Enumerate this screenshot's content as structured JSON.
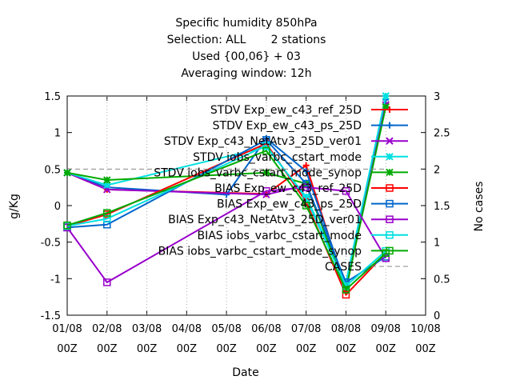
{
  "chart_data": {
    "type": "line",
    "title_lines": [
      "Specific humidity 850hPa",
      "Selection: ALL       2 stations",
      "Used {00,06} + 03",
      "Averaging window: 12h"
    ],
    "xlabel": "Date",
    "ylabel": "g/Kg",
    "y2label": "No cases",
    "x_ticks": [
      {
        "line1": "01/08",
        "line2": "00Z"
      },
      {
        "line1": "02/08",
        "line2": "00Z"
      },
      {
        "line1": "03/08",
        "line2": "00Z"
      },
      {
        "line1": "04/08",
        "line2": "00Z"
      },
      {
        "line1": "05/08",
        "line2": "00Z"
      },
      {
        "line1": "06/08",
        "line2": "00Z"
      },
      {
        "line1": "07/08",
        "line2": "00Z"
      },
      {
        "line1": "08/08",
        "line2": "00Z"
      },
      {
        "line1": "09/08",
        "line2": "00Z"
      },
      {
        "line1": "10/08",
        "line2": "00Z"
      }
    ],
    "x_range_days": [
      0,
      9
    ],
    "ylim": [
      -1.5,
      1.5
    ],
    "y_ticks": [
      "1.5",
      "1",
      "0.5",
      "0",
      "-0.5",
      "-1",
      "-1.5"
    ],
    "y2lim": [
      0,
      3
    ],
    "y2_ticks": [
      "3",
      "2.5",
      "2",
      "1.5",
      "1",
      "0.5",
      "0"
    ],
    "legend_placement": "top-right",
    "series": [
      {
        "name": "STDV Exp_ew_c43_ref_25D",
        "color": "#ff0000",
        "marker": "plus",
        "axis": "y1",
        "x": [
          0,
          1,
          5,
          6,
          7,
          8
        ],
        "y": [
          0.45,
          0.22,
          0.16,
          0.55,
          -1.15,
          1.4
        ]
      },
      {
        "name": "STDV Exp_ew_c43_ps_25D",
        "color": "#0066cc",
        "marker": "plus",
        "axis": "y1",
        "x": [
          0,
          1,
          4,
          5,
          6,
          7,
          8
        ],
        "y": [
          0.45,
          0.25,
          0.15,
          0.92,
          0.47,
          -1.1,
          1.45
        ]
      },
      {
        "name": "STDV Exp_c43_NetAtv3_25D_ver01",
        "color": "#9900cc",
        "marker": "x",
        "axis": "y1",
        "x": [
          0,
          1,
          5,
          6,
          7,
          8
        ],
        "y": [
          0.45,
          0.22,
          0.15,
          0.28,
          -1.1,
          1.38
        ]
      },
      {
        "name": "STDV iobs_varbc_cstart_mode",
        "color": "#00e0e0",
        "marker": "star",
        "axis": "y1",
        "x": [
          0,
          1,
          5,
          6,
          7,
          8
        ],
        "y": [
          0.45,
          0.28,
          0.8,
          0.12,
          -1.05,
          1.5
        ]
      },
      {
        "name": "STDV iobs_varbc_cstart_mode_synop",
        "color": "#00aa00",
        "marker": "star",
        "axis": "y1",
        "x": [
          0,
          1,
          5,
          6,
          7,
          8
        ],
        "y": [
          0.45,
          0.35,
          0.45,
          0.3,
          -1.15,
          1.35
        ]
      },
      {
        "name": "BIAS Exp_ew_c43_ref_25D",
        "color": "#ff0000",
        "marker": "square",
        "axis": "y1",
        "x": [
          0,
          1,
          5,
          6,
          7,
          8
        ],
        "y": [
          -0.28,
          -0.12,
          0.85,
          0.05,
          -1.22,
          -0.65
        ]
      },
      {
        "name": "BIAS Exp_ew_c43_ps_25D",
        "color": "#0066cc",
        "marker": "square",
        "axis": "y1",
        "x": [
          0,
          1,
          5,
          6,
          7,
          8
        ],
        "y": [
          -0.3,
          -0.26,
          0.9,
          0.3,
          -1.05,
          -0.7
        ]
      },
      {
        "name": "BIAS Exp_c43_NetAtv3_25D_ver01",
        "color": "#9900cc",
        "marker": "square",
        "axis": "y1",
        "x": [
          0,
          1,
          5,
          6,
          7,
          8
        ],
        "y": [
          -0.3,
          -1.05,
          0.2,
          0.25,
          0.2,
          -0.72
        ]
      },
      {
        "name": "BIAS iobs_varbc_cstart_mode",
        "color": "#00e0e0",
        "marker": "square",
        "axis": "y1",
        "x": [
          0,
          1,
          5,
          6,
          7,
          8
        ],
        "y": [
          -0.28,
          -0.18,
          0.82,
          0.1,
          -1.1,
          -0.62
        ]
      },
      {
        "name": "BIAS iobs_varbc_cstart_mode_synop",
        "color": "#00aa00",
        "marker": "square",
        "axis": "y1",
        "x": [
          0,
          1,
          5,
          6,
          7,
          8
        ],
        "y": [
          -0.27,
          -0.1,
          0.75,
          0.0,
          -1.15,
          -0.65
        ]
      },
      {
        "name": "CASES",
        "color": "#888888",
        "marker": "none",
        "dashed": true,
        "axis": "y2",
        "x": [
          0,
          1,
          5,
          6,
          7,
          8
        ],
        "y": [
          2,
          2,
          2,
          2,
          2,
          2
        ]
      }
    ]
  }
}
